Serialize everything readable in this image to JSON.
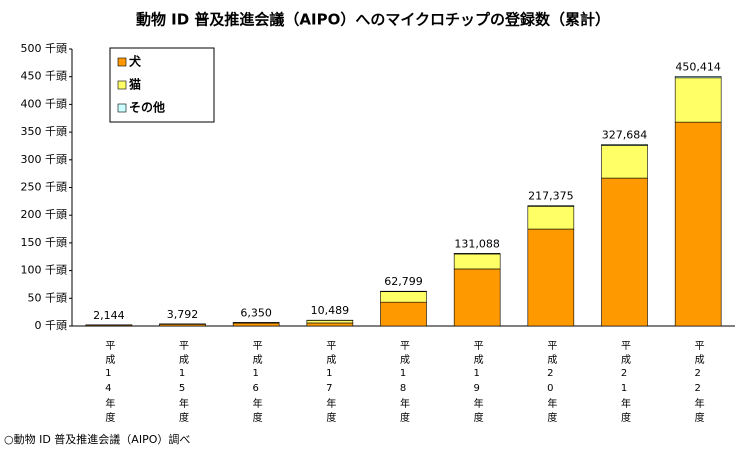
{
  "chart_data": {
    "type": "stacked_bar",
    "title": "動物 ID 普及推進会議（AIPO）へのマイクロチップの登録数（累計）",
    "note": "○動物 ID 普及推進会議（AIPO）調べ",
    "categories": [
      "平成14年度",
      "平成15年度",
      "平成16年度",
      "平成17年度",
      "平成18年度",
      "平成19年度",
      "平成20年度",
      "平成21年度",
      "平成22年度"
    ],
    "series": [
      {
        "name": "犬",
        "color": "#ff9900",
        "values": [
          1.8,
          3.1,
          5.2,
          5.5,
          43,
          103,
          175,
          267,
          368
        ]
      },
      {
        "name": "猫",
        "color": "#ffff66",
        "values": [
          0.3,
          0.6,
          1.0,
          4.7,
          19,
          27,
          41,
          59,
          80
        ]
      },
      {
        "name": "その他",
        "color": "#ccffff",
        "values": [
          0.044,
          0.092,
          0.15,
          0.289,
          0.799,
          1.088,
          1.375,
          1.684,
          2.414
        ]
      }
    ],
    "totals": {
      "values": [
        2.144,
        3.792,
        6.35,
        10.489,
        62.799,
        131.088,
        217.375,
        327.684,
        450.414
      ],
      "value_labels": [
        "2,144",
        "3,792",
        "6,350",
        "10,489",
        "62,799",
        "131,088",
        "217,375",
        "327,684",
        "450,414"
      ]
    },
    "ylim": [
      0,
      500
    ],
    "yticks": [
      {
        "value": 0,
        "label": "0 千頭"
      },
      {
        "value": 50,
        "label": "50 千頭"
      },
      {
        "value": 100,
        "label": "100 千頭"
      },
      {
        "value": 150,
        "label": "150 千頭"
      },
      {
        "value": 200,
        "label": "200 千頭"
      },
      {
        "value": 250,
        "label": "250 千頭"
      },
      {
        "value": 300,
        "label": "300 千頭"
      },
      {
        "value": 350,
        "label": "350 千頭"
      },
      {
        "value": 400,
        "label": "400 千頭"
      },
      {
        "value": 450,
        "label": "450 千頭"
      },
      {
        "value": 500,
        "label": "500 千頭"
      }
    ],
    "legend": "upper left",
    "grid": false
  }
}
